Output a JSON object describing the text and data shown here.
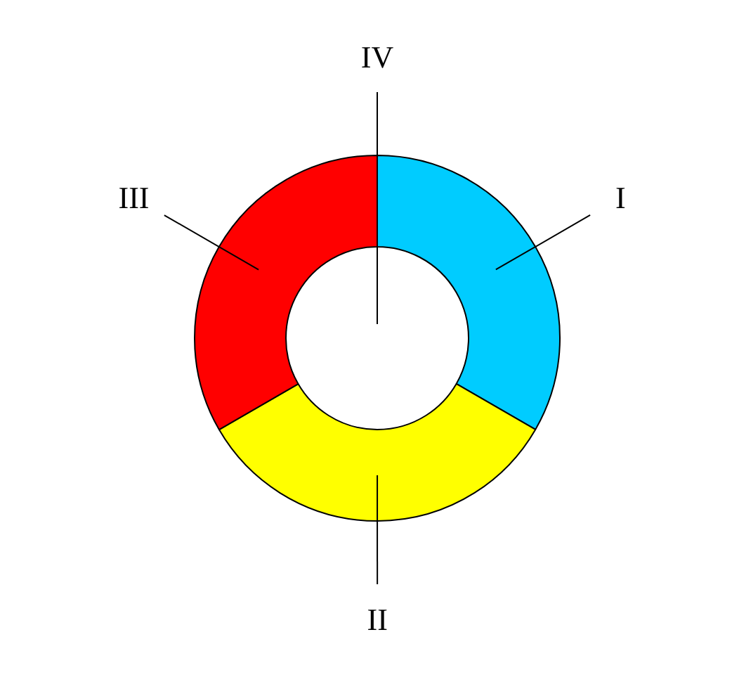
{
  "chart_data": {
    "type": "donut",
    "categories": [
      "I",
      "II",
      "III",
      "IV"
    ],
    "values": [
      33.33,
      33.33,
      33.34,
      0
    ],
    "colors": [
      "#00ccff",
      "#ffff00",
      "#ff0000",
      "#000000"
    ]
  }
}
